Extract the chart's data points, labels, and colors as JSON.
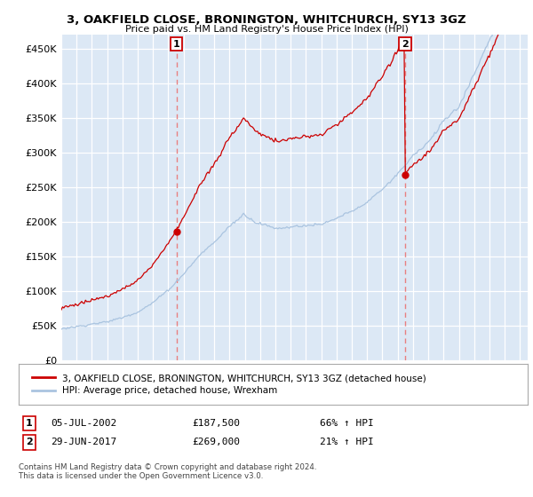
{
  "title": "3, OAKFIELD CLOSE, BRONINGTON, WHITCHURCH, SY13 3GZ",
  "subtitle": "Price paid vs. HM Land Registry's House Price Index (HPI)",
  "ylabel_ticks": [
    "£0",
    "£50K",
    "£100K",
    "£150K",
    "£200K",
    "£250K",
    "£300K",
    "£350K",
    "£400K",
    "£450K"
  ],
  "ytick_values": [
    0,
    50000,
    100000,
    150000,
    200000,
    250000,
    300000,
    350000,
    400000,
    450000
  ],
  "ylim": [
    0,
    470000
  ],
  "xlim_start": 1995.0,
  "xlim_end": 2025.5,
  "sale1": {
    "date": "05-JUL-2002",
    "price": 187500,
    "label": "1",
    "year": 2002.54
  },
  "sale2": {
    "date": "29-JUN-2017",
    "price": 269000,
    "label": "2",
    "year": 2017.49
  },
  "hpi_color": "#aac4e0",
  "price_color": "#cc0000",
  "vline_color": "#e88080",
  "dot_color": "#cc0000",
  "legend_label_price": "3, OAKFIELD CLOSE, BRONINGTON, WHITCHURCH, SY13 3GZ (detached house)",
  "legend_label_hpi": "HPI: Average price, detached house, Wrexham",
  "table_row1": [
    "1",
    "05-JUL-2002",
    "£187,500",
    "66% ↑ HPI"
  ],
  "table_row2": [
    "2",
    "29-JUN-2017",
    "£269,000",
    "21% ↑ HPI"
  ],
  "footer": "Contains HM Land Registry data © Crown copyright and database right 2024.\nThis data is licensed under the Open Government Licence v3.0.",
  "background_color": "#dce8f5"
}
